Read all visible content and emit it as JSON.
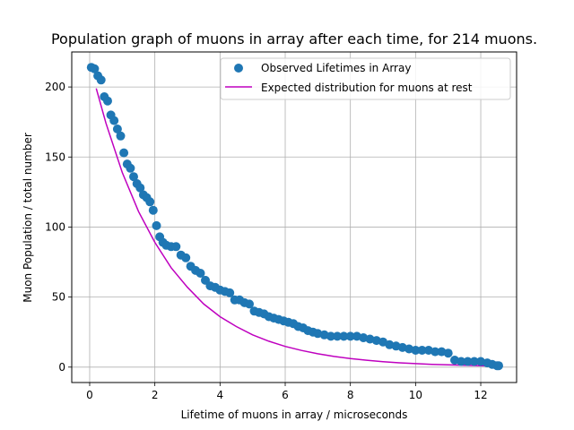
{
  "chart_data": {
    "type": "scatter",
    "title": "Population graph of muons in array after each time, for 214 muons.",
    "xlabel": "Lifetime of muons in array / microseconds",
    "ylabel": "Muon Population / total number",
    "xlim": [
      -0.55,
      13.1
    ],
    "ylim": [
      -11,
      225
    ],
    "xticks": [
      0,
      2,
      4,
      6,
      8,
      10,
      12
    ],
    "yticks": [
      0,
      50,
      100,
      150,
      200
    ],
    "grid": true,
    "legend_position": "top-right",
    "series": [
      {
        "name": "Observed Lifetimes in Array",
        "kind": "scatter",
        "color": "#1f77b4",
        "x": [
          0.05,
          0.15,
          0.25,
          0.35,
          0.45,
          0.55,
          0.65,
          0.75,
          0.85,
          0.95,
          1.05,
          1.15,
          1.25,
          1.35,
          1.45,
          1.55,
          1.65,
          1.75,
          1.85,
          1.95,
          2.05,
          2.15,
          2.25,
          2.35,
          2.5,
          2.65,
          2.8,
          2.95,
          3.1,
          3.25,
          3.4,
          3.55,
          3.7,
          3.85,
          4.0,
          4.15,
          4.3,
          4.45,
          4.6,
          4.75,
          4.9,
          5.05,
          5.2,
          5.35,
          5.5,
          5.65,
          5.8,
          5.95,
          6.1,
          6.25,
          6.4,
          6.55,
          6.7,
          6.85,
          7.0,
          7.2,
          7.4,
          7.6,
          7.8,
          8.0,
          8.2,
          8.4,
          8.6,
          8.8,
          9.0,
          9.2,
          9.4,
          9.6,
          9.8,
          10.0,
          10.2,
          10.4,
          10.6,
          10.8,
          11.0,
          11.2,
          11.4,
          11.6,
          11.8,
          12.0,
          12.2,
          12.35,
          12.5,
          12.55
        ],
        "y": [
          214,
          213,
          208,
          205,
          193,
          190,
          180,
          176,
          170,
          165,
          153,
          145,
          142,
          136,
          131,
          128,
          123,
          121,
          118,
          112,
          101,
          93,
          89,
          87,
          86,
          86,
          80,
          78,
          72,
          69,
          67,
          62,
          58,
          57,
          55,
          54,
          53,
          48,
          48,
          46,
          45,
          40,
          39,
          38,
          36,
          35,
          34,
          33,
          32,
          31,
          29,
          28,
          26,
          25,
          24,
          23,
          22,
          22,
          22,
          22,
          22,
          21,
          20,
          19,
          18,
          16,
          15,
          14,
          13,
          12,
          12,
          12,
          11,
          11,
          10,
          5,
          4,
          4,
          4,
          4,
          3,
          2,
          1,
          1
        ]
      },
      {
        "name": "Expected distribution for muons at rest",
        "kind": "line",
        "color": "#bf00bf",
        "x": [
          0.2,
          0.5,
          1.0,
          1.5,
          2.0,
          2.5,
          3.0,
          3.5,
          4.0,
          4.5,
          5.0,
          5.5,
          6.0,
          6.5,
          7.0,
          7.5,
          8.0,
          8.5,
          9.0,
          9.5,
          10.0,
          10.5,
          11.0,
          11.5,
          12.0,
          12.6
        ],
        "y": [
          199,
          174,
          139,
          111,
          89,
          71,
          57,
          45,
          36,
          29,
          23,
          18.5,
          14.8,
          11.9,
          9.5,
          7.6,
          6.1,
          4.9,
          3.9,
          3.1,
          2.5,
          2.0,
          1.6,
          1.3,
          1.0,
          0.7
        ]
      }
    ]
  }
}
